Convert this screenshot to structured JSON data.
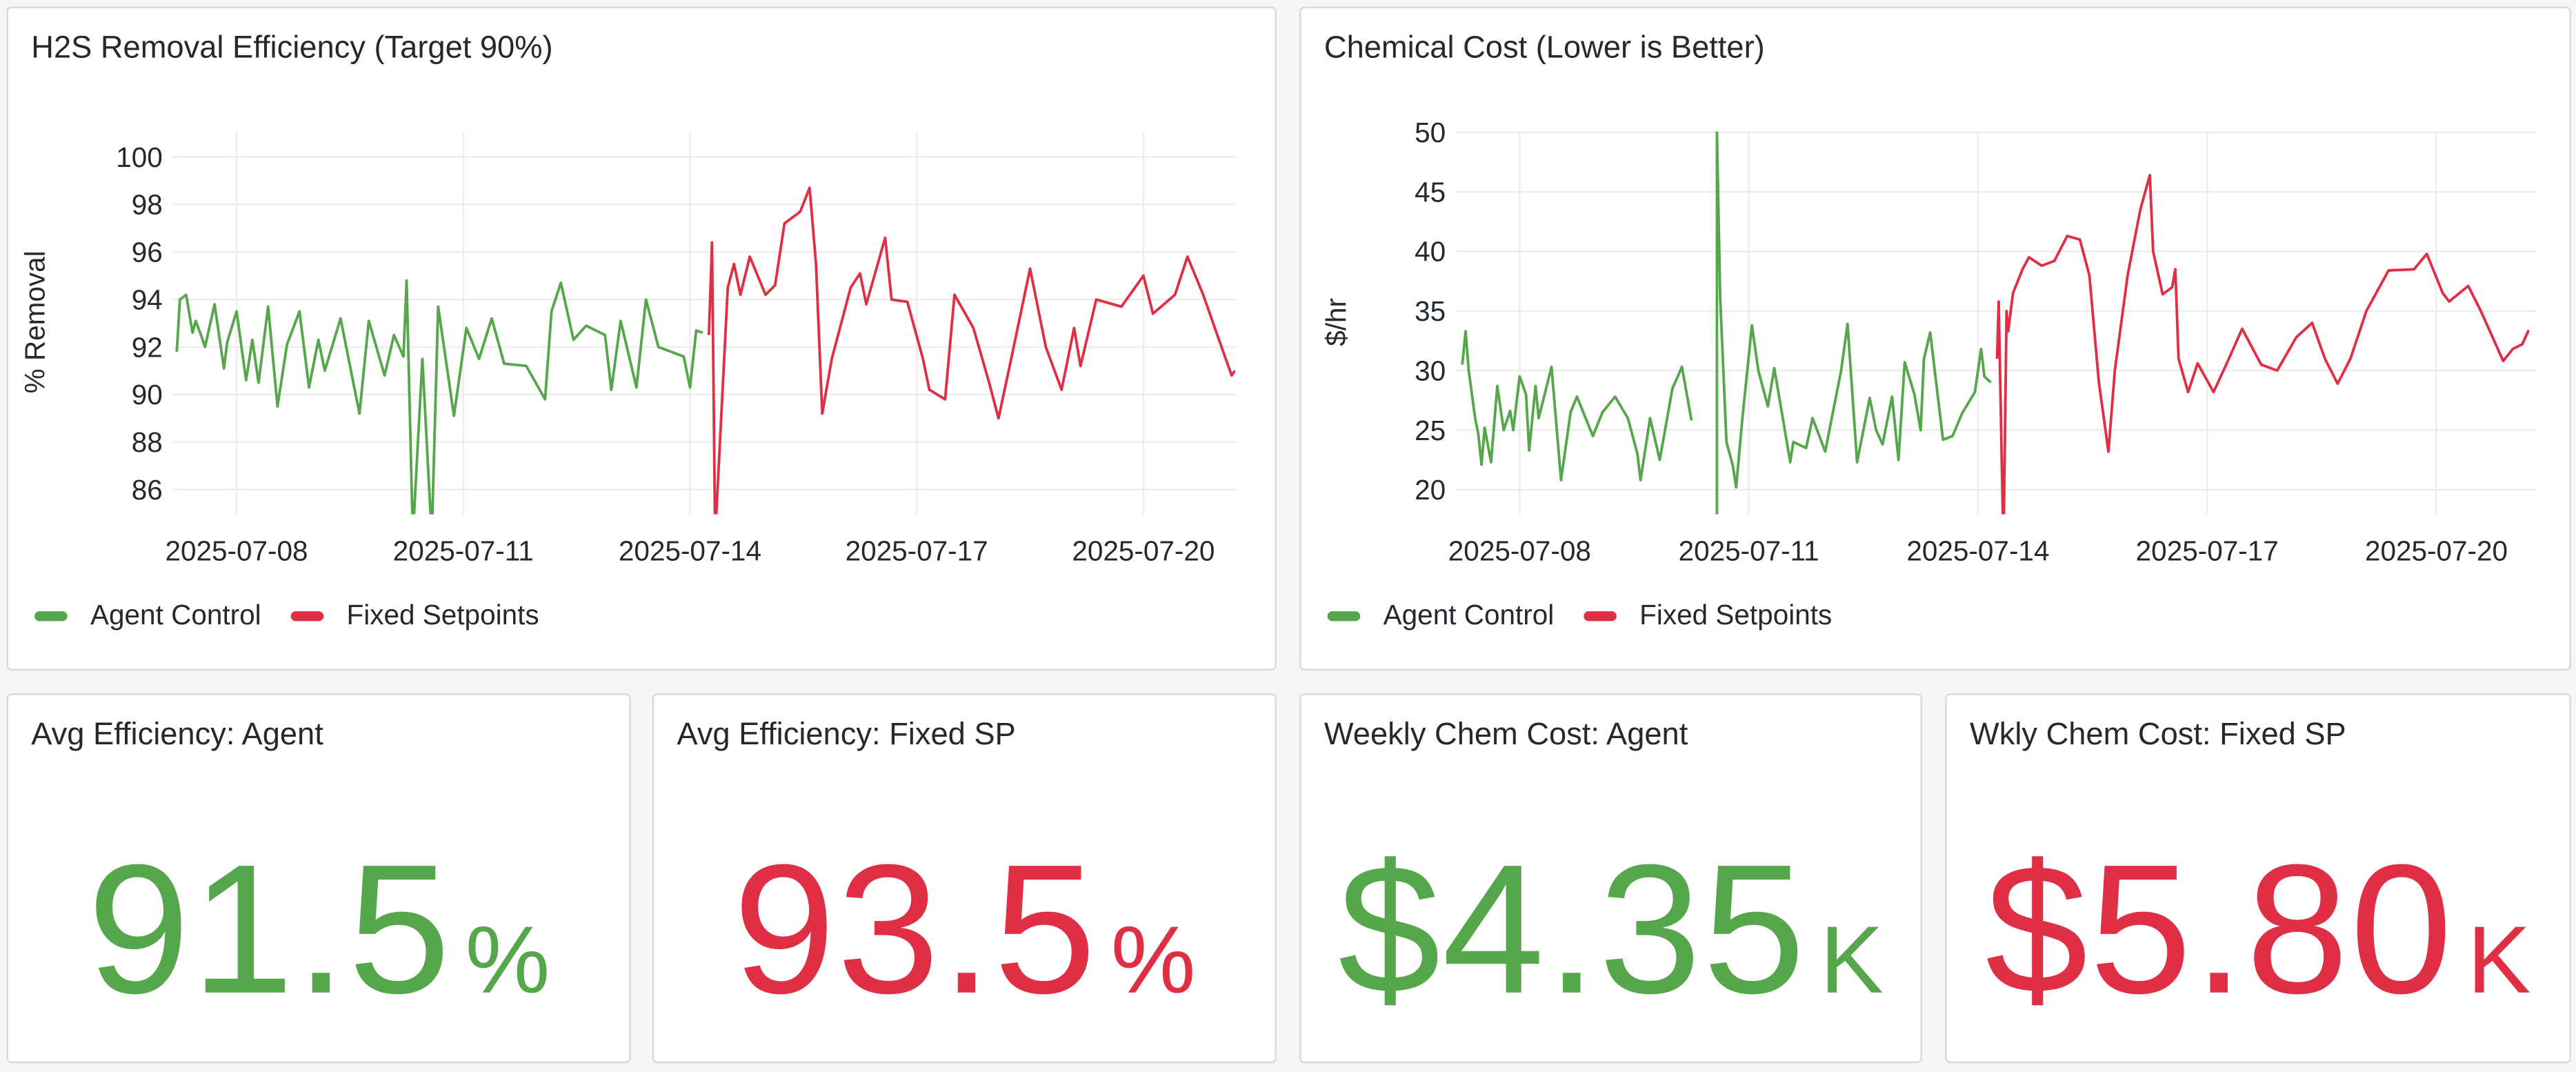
{
  "colors": {
    "agent": "#56a64b",
    "fixed": "#e02f44",
    "text": "#24292e",
    "grid": "#ececec"
  },
  "chart_data": [
    {
      "type": "line",
      "title": "H2S Removal Efficiency (Target 90%)",
      "xlabel": "",
      "ylabel": "% Removal",
      "ylim": [
        85,
        101
      ],
      "yticks": [
        86,
        88,
        90,
        92,
        94,
        96,
        98,
        100
      ],
      "xticks": [
        "2025-07-08",
        "2025-07-11",
        "2025-07-14",
        "2025-07-17",
        "2025-07-20"
      ],
      "grid": true,
      "legend": "bottom-left",
      "series": [
        {
          "name": "Agent Control",
          "color": "#56a64b",
          "points": [
            [
              "2025-07-07T05:00",
              91.8
            ],
            [
              "2025-07-07T06:00",
              94
            ],
            [
              "2025-07-07T08:00",
              94.2
            ],
            [
              "2025-07-07T10:00",
              92.6
            ],
            [
              "2025-07-07T11:00",
              93.1
            ],
            [
              "2025-07-07T13:00",
              92.4
            ],
            [
              "2025-07-07T14:00",
              92
            ],
            [
              "2025-07-07T17:00",
              93.8
            ],
            [
              "2025-07-07T20:00",
              91.1
            ],
            [
              "2025-07-07T21:00",
              92.2
            ],
            [
              "2025-07-08T00:00",
              93.5
            ],
            [
              "2025-07-08T03:00",
              90.6
            ],
            [
              "2025-07-08T05:00",
              92.3
            ],
            [
              "2025-07-08T07:00",
              90.5
            ],
            [
              "2025-07-08T10:00",
              93.7
            ],
            [
              "2025-07-08T13:00",
              89.5
            ],
            [
              "2025-07-08T16:00",
              92.1
            ],
            [
              "2025-07-08T20:00",
              93.5
            ],
            [
              "2025-07-08T23:00",
              90.3
            ],
            [
              "2025-07-09T02:00",
              92.3
            ],
            [
              "2025-07-09T04:00",
              91
            ],
            [
              "2025-07-09T09:00",
              93.2
            ],
            [
              "2025-07-09T15:00",
              89.2
            ],
            [
              "2025-07-09T18:00",
              93.1
            ],
            [
              "2025-07-09T23:00",
              90.8
            ],
            [
              "2025-07-10T02:00",
              92.5
            ],
            [
              "2025-07-10T05:00",
              91.6
            ],
            [
              "2025-07-10T06:00",
              94.8
            ],
            [
              "2025-07-10T08:00",
              84
            ],
            [
              "2025-07-10T11:00",
              91.5
            ],
            [
              "2025-07-10T14:00",
              84
            ],
            [
              "2025-07-10T16:00",
              93.7
            ],
            [
              "2025-07-10T21:00",
              89.1
            ],
            [
              "2025-07-11T01:00",
              92.8
            ],
            [
              "2025-07-11T05:00",
              91.5
            ],
            [
              "2025-07-11T09:00",
              93.2
            ],
            [
              "2025-07-11T13:00",
              91.3
            ],
            [
              "2025-07-11T20:00",
              91.2
            ],
            [
              "2025-07-12T02:00",
              89.8
            ],
            [
              "2025-07-12T04:00",
              93.5
            ],
            [
              "2025-07-12T07:00",
              94.7
            ],
            [
              "2025-07-12T11:00",
              92.3
            ],
            [
              "2025-07-12T15:00",
              92.9
            ],
            [
              "2025-07-12T21:00",
              92.5
            ],
            [
              "2025-07-12T23:00",
              90.2
            ],
            [
              "2025-07-13T02:00",
              93.1
            ],
            [
              "2025-07-13T07:00",
              90.3
            ],
            [
              "2025-07-13T10:00",
              94
            ],
            [
              "2025-07-13T14:00",
              92
            ],
            [
              "2025-07-13T22:00",
              91.6
            ],
            [
              "2025-07-14T00:00",
              90.3
            ],
            [
              "2025-07-14T02:00",
              92.7
            ],
            [
              "2025-07-14T04:00",
              92.6
            ]
          ]
        },
        {
          "name": "Fixed Setpoints",
          "color": "#e02f44",
          "points": [
            [
              "2025-07-14T06:00",
              92.5
            ],
            [
              "2025-07-14T07:00",
              96.4
            ],
            [
              "2025-07-14T08:00",
              84
            ],
            [
              "2025-07-14T12:00",
              94.5
            ],
            [
              "2025-07-14T14:00",
              95.5
            ],
            [
              "2025-07-14T16:00",
              94.2
            ],
            [
              "2025-07-14T19:00",
              95.8
            ],
            [
              "2025-07-15T00:00",
              94.2
            ],
            [
              "2025-07-15T03:00",
              94.6
            ],
            [
              "2025-07-15T06:00",
              97.2
            ],
            [
              "2025-07-15T11:00",
              97.7
            ],
            [
              "2025-07-15T14:00",
              98.7
            ],
            [
              "2025-07-15T16:00",
              95.5
            ],
            [
              "2025-07-15T18:00",
              89.2
            ],
            [
              "2025-07-15T21:00",
              91.5
            ],
            [
              "2025-07-16T03:00",
              94.5
            ],
            [
              "2025-07-16T06:00",
              95.1
            ],
            [
              "2025-07-16T08:00",
              93.8
            ],
            [
              "2025-07-16T14:00",
              96.6
            ],
            [
              "2025-07-16T16:00",
              94
            ],
            [
              "2025-07-16T21:00",
              93.9
            ],
            [
              "2025-07-17T02:00",
              91.5
            ],
            [
              "2025-07-17T04:00",
              90.2
            ],
            [
              "2025-07-17T09:00",
              89.8
            ],
            [
              "2025-07-17T12:00",
              94.2
            ],
            [
              "2025-07-17T18:00",
              92.8
            ],
            [
              "2025-07-17T23:00",
              90.5
            ],
            [
              "2025-07-18T02:00",
              89
            ],
            [
              "2025-07-18T06:00",
              91.5
            ],
            [
              "2025-07-18T12:00",
              95.3
            ],
            [
              "2025-07-18T17:00",
              92
            ],
            [
              "2025-07-18T22:00",
              90.2
            ],
            [
              "2025-07-19T02:00",
              92.8
            ],
            [
              "2025-07-19T04:00",
              91.2
            ],
            [
              "2025-07-19T09:00",
              94
            ],
            [
              "2025-07-19T17:00",
              93.7
            ],
            [
              "2025-07-20T00:00",
              95
            ],
            [
              "2025-07-20T03:00",
              93.4
            ],
            [
              "2025-07-20T10:00",
              94.2
            ],
            [
              "2025-07-20T14:00",
              95.8
            ],
            [
              "2025-07-20T19:00",
              94.2
            ],
            [
              "2025-07-21T00:00",
              92.3
            ],
            [
              "2025-07-21T04:00",
              90.8
            ],
            [
              "2025-07-21T05:00",
              91
            ]
          ]
        }
      ]
    },
    {
      "type": "line",
      "title": "Chemical Cost (Lower is Better)",
      "xlabel": "",
      "ylabel": "$/hr",
      "ylim": [
        18,
        50
      ],
      "yticks": [
        20,
        25,
        30,
        35,
        40,
        45,
        50
      ],
      "xticks": [
        "2025-07-08",
        "2025-07-11",
        "2025-07-14",
        "2025-07-17",
        "2025-07-20"
      ],
      "grid": true,
      "legend": "bottom-left",
      "series": [
        {
          "name": "Agent Control",
          "color": "#56a64b",
          "points": [
            [
              "2025-07-07T06:00",
              30.5
            ],
            [
              "2025-07-07T07:00",
              33.3
            ],
            [
              "2025-07-07T08:00",
              30
            ],
            [
              "2025-07-07T10:00",
              26
            ],
            [
              "2025-07-07T11:00",
              24.7
            ],
            [
              "2025-07-07T12:00",
              22.1
            ],
            [
              "2025-07-07T13:00",
              25.2
            ],
            [
              "2025-07-07T15:00",
              22.3
            ],
            [
              "2025-07-07T17:00",
              28.7
            ],
            [
              "2025-07-07T19:00",
              25
            ],
            [
              "2025-07-07T21:00",
              26.6
            ],
            [
              "2025-07-07T22:00",
              25
            ],
            [
              "2025-07-08T00:00",
              29.5
            ],
            [
              "2025-07-08T02:00",
              28
            ],
            [
              "2025-07-08T03:00",
              23.3
            ],
            [
              "2025-07-08T05:00",
              28.7
            ],
            [
              "2025-07-08T06:00",
              26
            ],
            [
              "2025-07-08T10:00",
              30.3
            ],
            [
              "2025-07-08T13:00",
              20.8
            ],
            [
              "2025-07-08T16:00",
              26.5
            ],
            [
              "2025-07-08T18:00",
              27.8
            ],
            [
              "2025-07-08T23:00",
              24.5
            ],
            [
              "2025-07-09T02:00",
              26.5
            ],
            [
              "2025-07-09T06:00",
              27.8
            ],
            [
              "2025-07-09T10:00",
              26
            ],
            [
              "2025-07-09T13:00",
              23
            ],
            [
              "2025-07-09T14:00",
              20.8
            ],
            [
              "2025-07-09T17:00",
              26
            ],
            [
              "2025-07-09T20:00",
              22.5
            ],
            [
              "2025-07-10T00:00",
              28.5
            ],
            [
              "2025-07-10T03:00",
              30.3
            ],
            [
              "2025-07-10T06:00",
              25.8
            ],
            null,
            [
              "2025-07-10T14:00",
              15
            ],
            [
              "2025-07-10T14:00",
              50
            ],
            [
              "2025-07-10T15:00",
              36
            ],
            [
              "2025-07-10T17:00",
              24
            ],
            [
              "2025-07-10T19:00",
              22
            ],
            [
              "2025-07-10T20:00",
              20.2
            ],
            [
              "2025-07-10T22:00",
              26
            ],
            [
              "2025-07-11T01:00",
              33.8
            ],
            [
              "2025-07-11T03:00",
              30
            ],
            [
              "2025-07-11T06:00",
              27
            ],
            [
              "2025-07-11T08:00",
              30.2
            ],
            [
              "2025-07-11T11:00",
              25.5
            ],
            [
              "2025-07-11T13:00",
              22.3
            ],
            [
              "2025-07-11T14:00",
              24
            ],
            [
              "2025-07-11T18:00",
              23.5
            ],
            [
              "2025-07-11T20:00",
              26
            ],
            [
              "2025-07-12T00:00",
              23.2
            ],
            [
              "2025-07-12T05:00",
              30
            ],
            [
              "2025-07-12T07:00",
              33.9
            ],
            [
              "2025-07-12T10:00",
              22.3
            ],
            [
              "2025-07-12T14:00",
              27.7
            ],
            [
              "2025-07-12T16:00",
              25
            ],
            [
              "2025-07-12T18:00",
              23.8
            ],
            [
              "2025-07-12T21:00",
              27.8
            ],
            [
              "2025-07-12T23:00",
              22.5
            ],
            [
              "2025-07-13T01:00",
              30.7
            ],
            [
              "2025-07-13T04:00",
              28
            ],
            [
              "2025-07-13T06:00",
              25
            ],
            [
              "2025-07-13T07:00",
              31
            ],
            [
              "2025-07-13T09:00",
              33.2
            ],
            [
              "2025-07-13T13:00",
              24.2
            ],
            [
              "2025-07-13T16:00",
              24.5
            ],
            [
              "2025-07-13T19:00",
              26.4
            ],
            [
              "2025-07-13T23:00",
              28.2
            ],
            [
              "2025-07-14T01:00",
              31.8
            ],
            [
              "2025-07-14T02:00",
              29.5
            ],
            [
              "2025-07-14T04:00",
              29
            ]
          ]
        },
        {
          "name": "Fixed Setpoints",
          "color": "#e02f44",
          "points": [
            [
              "2025-07-14T06:00",
              31
            ],
            [
              "2025-07-14T06:30",
              35.8
            ],
            [
              "2025-07-14T08:00",
              15
            ],
            [
              "2025-07-14T09:00",
              35
            ],
            [
              "2025-07-14T09:30",
              33.3
            ],
            [
              "2025-07-14T11:00",
              36.5
            ],
            [
              "2025-07-14T14:00",
              38.5
            ],
            [
              "2025-07-14T16:00",
              39.5
            ],
            [
              "2025-07-14T20:00",
              38.8
            ],
            [
              "2025-07-15T00:00",
              39.2
            ],
            [
              "2025-07-15T04:00",
              41.3
            ],
            [
              "2025-07-15T08:00",
              41
            ],
            [
              "2025-07-15T11:00",
              38
            ],
            [
              "2025-07-15T14:00",
              29
            ],
            [
              "2025-07-15T17:00",
              23.2
            ],
            [
              "2025-07-15T19:00",
              30
            ],
            [
              "2025-07-15T23:00",
              38
            ],
            [
              "2025-07-16T03:00",
              43.5
            ],
            [
              "2025-07-16T06:00",
              46.4
            ],
            [
              "2025-07-16T07:00",
              40
            ],
            [
              "2025-07-16T10:00",
              36.4
            ],
            [
              "2025-07-16T13:00",
              37
            ],
            [
              "2025-07-16T14:00",
              38.5
            ],
            [
              "2025-07-16T15:00",
              31
            ],
            [
              "2025-07-16T18:00",
              28.2
            ],
            [
              "2025-07-16T21:00",
              30.6
            ],
            [
              "2025-07-17T02:00",
              28.2
            ],
            [
              "2025-07-17T06:00",
              30.5
            ],
            [
              "2025-07-17T11:00",
              33.5
            ],
            [
              "2025-07-17T17:00",
              30.5
            ],
            [
              "2025-07-17T22:00",
              30
            ],
            [
              "2025-07-18T04:00",
              32.8
            ],
            [
              "2025-07-18T09:00",
              34
            ],
            [
              "2025-07-18T13:00",
              31
            ],
            [
              "2025-07-18T17:00",
              28.9
            ],
            [
              "2025-07-18T21:00",
              31
            ],
            [
              "2025-07-19T02:00",
              35
            ],
            [
              "2025-07-19T09:00",
              38.4
            ],
            [
              "2025-07-19T17:00",
              38.5
            ],
            [
              "2025-07-19T21:00",
              39.8
            ],
            [
              "2025-07-20T02:00",
              36.5
            ],
            [
              "2025-07-20T04:00",
              35.8
            ],
            [
              "2025-07-20T10:00",
              37.1
            ],
            [
              "2025-07-20T14:00",
              35
            ],
            [
              "2025-07-20T21:00",
              30.8
            ],
            [
              "2025-07-21T00:00",
              31.8
            ],
            [
              "2025-07-21T03:00",
              32.2
            ],
            [
              "2025-07-21T05:00",
              33.4
            ]
          ]
        }
      ]
    }
  ],
  "stats": [
    {
      "title": "Avg Efficiency: Agent",
      "value": "91.5",
      "unit": "%",
      "color": "#56a64b"
    },
    {
      "title": "Avg Efficiency: Fixed SP",
      "value": "93.5",
      "unit": "%",
      "color": "#e02f44"
    },
    {
      "title": "Weekly Chem Cost: Agent",
      "value": "$4.35",
      "unit": "K",
      "color": "#56a64b"
    },
    {
      "title": "Wkly Chem Cost: Fixed SP",
      "value": "$5.80",
      "unit": "K",
      "color": "#e02f44"
    }
  ]
}
